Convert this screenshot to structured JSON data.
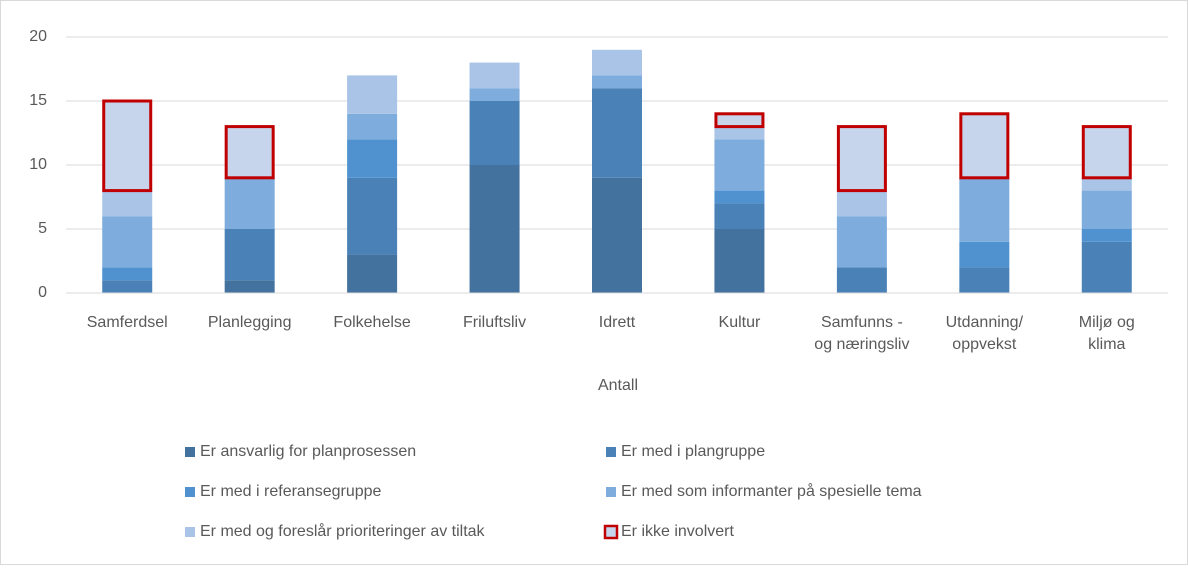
{
  "chart_data": {
    "type": "stacked_bar",
    "x_label": "Antall",
    "categories": [
      "Samferdsel",
      "Planlegging",
      "Folkehelse",
      "Friluftsliv",
      "Idrett",
      "Kultur",
      "Samfunns -\nog næringsliv",
      "Utdanning/\noppvekst",
      "Miljø og\nklima"
    ],
    "series": [
      {
        "name": "Er ansvarlig for planprosessen",
        "color": "#44729e",
        "values": [
          0,
          1,
          3,
          10,
          9,
          5,
          0,
          0,
          0
        ]
      },
      {
        "name": "Er med i plangruppe",
        "color": "#4a82b8",
        "values": [
          1,
          4,
          6,
          5,
          7,
          2,
          2,
          2,
          4
        ]
      },
      {
        "name": "Er med i referansegruppe",
        "color": "#5092d0",
        "values": [
          1,
          0,
          3,
          0,
          0,
          1,
          0,
          2,
          1
        ]
      },
      {
        "name": "Er med som informanter på spesielle tema",
        "color": "#7eaddd",
        "values": [
          4,
          4,
          2,
          1,
          1,
          4,
          4,
          5,
          3
        ]
      },
      {
        "name": "Er med og foreslår prioriteringer av tiltak",
        "color": "#a9c4e6",
        "values": [
          2,
          0,
          3,
          2,
          2,
          1,
          2,
          0,
          1
        ]
      },
      {
        "name": "Er ikke involvert",
        "color": "#c6d5eb",
        "edgecolor": "#c00000",
        "values": [
          7,
          4,
          0,
          0,
          0,
          1,
          5,
          5,
          4
        ]
      }
    ],
    "ylim": [
      0,
      20
    ],
    "yticks": [
      0,
      5,
      10,
      15,
      20
    ],
    "grid": true,
    "legend": "bottom"
  }
}
